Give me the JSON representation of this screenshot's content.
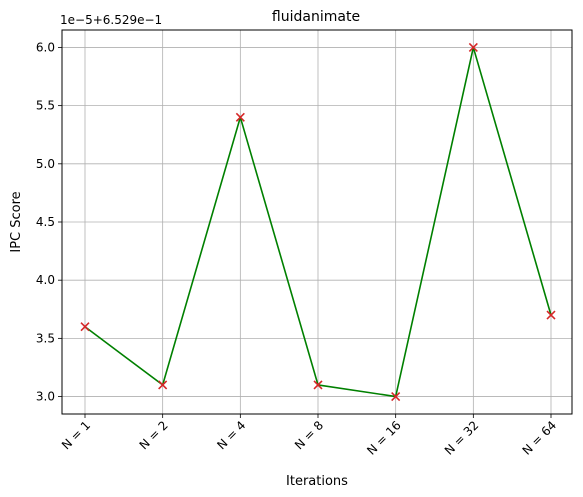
{
  "chart_data": {
    "type": "line",
    "title": "fluidanimate",
    "xlabel": "Iterations",
    "ylabel": "IPC Score",
    "offset_label": "1e−5+6.529e−1",
    "categories": [
      "N = 1",
      "N = 2",
      "N = 4",
      "N = 8",
      "N = 16",
      "N = 32",
      "N = 64"
    ],
    "series": [
      {
        "values": [
          3.6,
          3.1,
          5.4,
          3.1,
          3.0,
          6.0,
          3.7
        ]
      }
    ],
    "yticks": [
      "3.0",
      "3.5",
      "4.0",
      "4.5",
      "5.0",
      "5.5",
      "6.0"
    ],
    "ylim": [
      2.85,
      6.15
    ],
    "grid": true,
    "colors": {
      "line": "#008000",
      "marker": "#d62728",
      "grid": "#b0b0b0"
    }
  }
}
